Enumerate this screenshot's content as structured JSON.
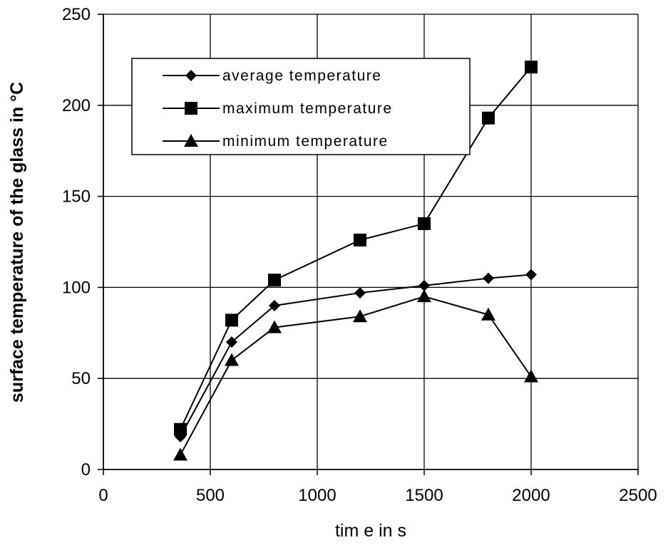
{
  "chart_data": {
    "type": "line",
    "title": "",
    "xlabel": "tim e in s",
    "ylabel": "surface temperature of the glass in °C",
    "xlim": [
      0,
      2500
    ],
    "ylim": [
      0,
      250
    ],
    "xticks": [
      0,
      500,
      1000,
      1500,
      2000,
      2500
    ],
    "yticks": [
      0,
      50,
      100,
      150,
      200,
      250
    ],
    "grid": true,
    "legend_position": "top-left",
    "x": [
      360,
      600,
      800,
      1200,
      1500,
      1800,
      2000
    ],
    "series": [
      {
        "name": "average temperature",
        "marker": "diamond",
        "values": [
          18,
          70,
          90,
          97,
          101,
          105,
          107
        ]
      },
      {
        "name": "maximum temperature",
        "marker": "square",
        "values": [
          22,
          82,
          104,
          126,
          135,
          193,
          221
        ]
      },
      {
        "name": "minimum temperature",
        "marker": "triangle",
        "values": [
          8,
          60,
          78,
          84,
          95,
          85,
          51
        ]
      }
    ],
    "colors": {
      "line": "#000000",
      "grid": "#000000",
      "background": "#ffffff"
    }
  }
}
